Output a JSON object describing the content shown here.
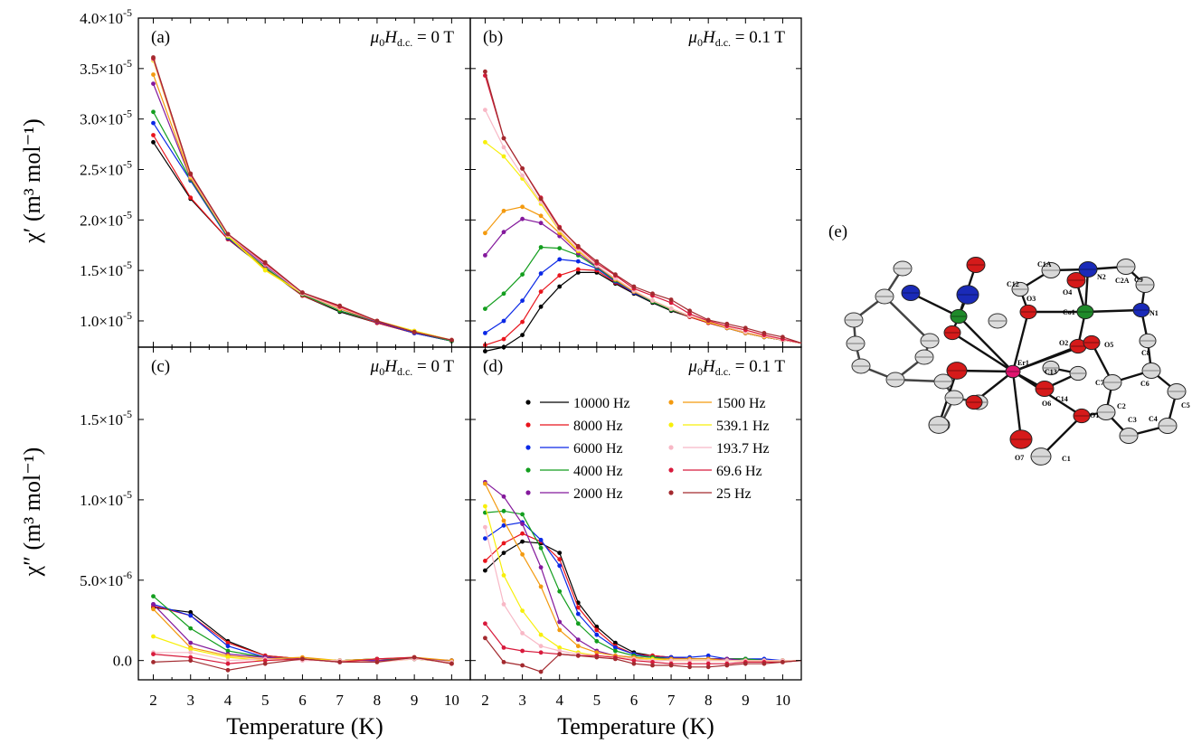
{
  "chart_data": {
    "type": "line",
    "xlabel": "Temperature (K)",
    "ylabel_top": "χ′ (m³ mol⁻¹)",
    "ylabel_bottom": "χ″ (m³ mol⁻¹)",
    "x_ticks": [
      2,
      3,
      4,
      5,
      6,
      7,
      8,
      9,
      10
    ],
    "xlim": [
      1.6,
      10.5
    ],
    "top_ylim": [
      7.4e-06,
      4e-05
    ],
    "bottom_ylim": [
      -1.2e-06,
      1.95e-05
    ],
    "top_y_ticks": [
      {
        "v": 1e-05,
        "m": "1.0×10",
        "e": "-5"
      },
      {
        "v": 1.5e-05,
        "m": "1.5×10",
        "e": "-5"
      },
      {
        "v": 2e-05,
        "m": "2.0×10",
        "e": "-5"
      },
      {
        "v": 2.5e-05,
        "m": "2.5×10",
        "e": "-5"
      },
      {
        "v": 3e-05,
        "m": "3.0×10",
        "e": "-5"
      },
      {
        "v": 3.5e-05,
        "m": "3.5×10",
        "e": "-5"
      },
      {
        "v": 4e-05,
        "m": "4.0×10",
        "e": "-5"
      }
    ],
    "bottom_y_ticks": [
      {
        "v": 0,
        "m": "0.0",
        "e": ""
      },
      {
        "v": 5e-06,
        "m": "5.0×10",
        "e": "-6"
      },
      {
        "v": 1e-05,
        "m": "1.0×10",
        "e": "-5"
      },
      {
        "v": 1.5e-05,
        "m": "1.5×10",
        "e": "-5"
      }
    ],
    "series_labels": [
      "10000 Hz",
      "8000 Hz",
      "6000 Hz",
      "4000 Hz",
      "2000 Hz",
      "1500 Hz",
      "539.1 Hz",
      "193.7 Hz",
      "69.6 Hz",
      "25 Hz"
    ],
    "series_colors": [
      "#000000",
      "#e8141c",
      "#0a28e6",
      "#139e1e",
      "#84199c",
      "#f39a0f",
      "#f7ef0a",
      "#f8b8c6",
      "#d81a3c",
      "#a32a2f"
    ],
    "legend_position": "upper-right of panel (d)",
    "panels": [
      {
        "id": "a",
        "letter": "(a)",
        "field": "0 T",
        "row": "top",
        "col": "left",
        "x": [
          2,
          3,
          4,
          5,
          6,
          7,
          8,
          9,
          10
        ],
        "series": [
          [
            2.77e-05,
            2.21e-05,
            1.81e-05,
            1.52e-05,
            1.25e-05,
            1.09e-05,
            9.8e-06,
            8.8e-06,
            8e-06
          ],
          [
            2.84e-05,
            2.22e-05,
            1.81e-05,
            1.53e-05,
            1.25e-05,
            1.1e-05,
            9.8e-06,
            8.8e-06,
            8e-06
          ],
          [
            2.96e-05,
            2.39e-05,
            1.82e-05,
            1.52e-05,
            1.26e-05,
            1.1e-05,
            9.9e-06,
            8.8e-06,
            8e-06
          ],
          [
            3.07e-05,
            2.4e-05,
            1.83e-05,
            1.53e-05,
            1.26e-05,
            1.1e-05,
            9.9e-06,
            8.9e-06,
            8e-06
          ],
          [
            3.35e-05,
            2.41e-05,
            1.84e-05,
            1.55e-05,
            1.27e-05,
            1.12e-05,
            9.9e-06,
            8.9e-06,
            8.1e-06
          ],
          [
            3.44e-05,
            2.42e-05,
            1.85e-05,
            1.51e-05,
            1.27e-05,
            1.12e-05,
            1e-05,
            9e-06,
            8.1e-06
          ],
          [
            3.58e-05,
            2.43e-05,
            1.84e-05,
            1.5e-05,
            1.27e-05,
            1.13e-05,
            1e-05,
            9e-06,
            8.1e-06
          ],
          [
            3.59e-05,
            2.44e-05,
            1.85e-05,
            1.56e-05,
            1.27e-05,
            1.13e-05,
            1e-05,
            8.9e-06,
            8.1e-06
          ],
          [
            3.6e-05,
            2.45e-05,
            1.86e-05,
            1.57e-05,
            1.28e-05,
            1.14e-05,
            1e-05,
            8.9e-06,
            8.1e-06
          ],
          [
            3.61e-05,
            2.46e-05,
            1.86e-05,
            1.58e-05,
            1.28e-05,
            1.15e-05,
            1e-05,
            8.9e-06,
            8.1e-06
          ]
        ]
      },
      {
        "id": "b",
        "letter": "(b)",
        "field": "0.1 T",
        "row": "top",
        "col": "right",
        "x": [
          2.0,
          2.5,
          3.0,
          3.5,
          4.0,
          4.5,
          5.0,
          5.5,
          6.0,
          6.5,
          7.0,
          7.5,
          8.0,
          8.5,
          9.0,
          9.5,
          10.0,
          10.5
        ],
        "series": [
          [
            7e-06,
            7.4e-06,
            8.6e-06,
            1.14e-05,
            1.34e-05,
            1.48e-05,
            1.48e-05,
            1.37e-05,
            1.27e-05,
            1.18e-05,
            1.1e-05,
            1.04e-05,
            9.8e-06,
            9.3e-06,
            8.8e-06,
            8.4e-06,
            8.1e-06,
            7.8e-06
          ],
          [
            7.6e-06,
            8.2e-06,
            9.9e-06,
            1.29e-05,
            1.45e-05,
            1.51e-05,
            1.5e-05,
            1.38e-05,
            1.28e-05,
            1.19e-05,
            1.11e-05,
            1.04e-05,
            9.8e-06,
            9.3e-06,
            8.8e-06,
            8.4e-06,
            8.1e-06,
            7.8e-06
          ],
          [
            8.8e-06,
            1e-05,
            1.2e-05,
            1.47e-05,
            1.61e-05,
            1.59e-05,
            1.52e-05,
            1.39e-05,
            1.28e-05,
            1.19e-05,
            1.11e-05,
            1.05e-05,
            9.9e-06,
            9.3e-06,
            8.8e-06,
            8.4e-06,
            8.1e-06,
            7.8e-06
          ],
          [
            1.12e-05,
            1.27e-05,
            1.46e-05,
            1.73e-05,
            1.72e-05,
            1.65e-05,
            1.53e-05,
            1.4e-05,
            1.29e-05,
            1.19e-05,
            1.11e-05,
            1.05e-05,
            9.9e-06,
            9.3e-06,
            8.8e-06,
            8.4e-06,
            8.1e-06,
            7.8e-06
          ],
          [
            1.65e-05,
            1.88e-05,
            2.01e-05,
            1.97e-05,
            1.84e-05,
            1.67e-05,
            1.54e-05,
            1.41e-05,
            1.29e-05,
            1.2e-05,
            1.12e-05,
            1.05e-05,
            9.9e-06,
            9.3e-06,
            8.8e-06,
            8.4e-06,
            8.1e-06,
            7.8e-06
          ],
          [
            1.87e-05,
            2.09e-05,
            2.13e-05,
            2.04e-05,
            1.87e-05,
            1.69e-05,
            1.55e-05,
            1.41e-05,
            1.29e-05,
            1.2e-05,
            1.12e-05,
            1.05e-05,
            9.9e-06,
            9.3e-06,
            8.8e-06,
            8.4e-06,
            8.1e-06,
            7.8e-06
          ],
          [
            2.77e-05,
            2.63e-05,
            2.41e-05,
            2.16e-05,
            1.89e-05,
            1.7e-05,
            1.55e-05,
            1.42e-05,
            1.3e-05,
            1.2e-05,
            1.12e-05,
            1.05e-05,
            9.9e-06,
            9.4e-06,
            8.9e-06,
            8.5e-06,
            8.1e-06,
            7.8e-06
          ],
          [
            3.09e-05,
            2.72e-05,
            2.44e-05,
            2.18e-05,
            1.9e-05,
            1.71e-05,
            1.55e-05,
            1.42e-05,
            1.3e-05,
            1.2e-05,
            1.12e-05,
            1.05e-05,
            1e-05,
            9.4e-06,
            8.9e-06,
            8.5e-06,
            8.1e-06,
            7.8e-06
          ],
          [
            3.43e-05,
            2.81e-05,
            2.51e-05,
            2.22e-05,
            1.93e-05,
            1.73e-05,
            1.57e-05,
            1.45e-05,
            1.32e-05,
            1.25e-05,
            1.18e-05,
            1.07e-05,
            1e-05,
            9.5e-06,
            9.1e-06,
            8.6e-06,
            8.2e-06,
            7.8e-06
          ],
          [
            3.47e-05,
            2.81e-05,
            2.51e-05,
            2.21e-05,
            1.92e-05,
            1.74e-05,
            1.59e-05,
            1.46e-05,
            1.34e-05,
            1.27e-05,
            1.21e-05,
            1.1e-05,
            1.01e-05,
            9.7e-06,
            9.3e-06,
            8.8e-06,
            8.4e-06,
            7.8e-06
          ]
        ]
      },
      {
        "id": "c",
        "letter": "(c)",
        "field": "0 T",
        "row": "bottom",
        "col": "left",
        "x": [
          2,
          3,
          4,
          5,
          6,
          7,
          8,
          9,
          10
        ],
        "series": [
          [
            3.3e-06,
            3e-06,
            1.2e-06,
            3e-07,
            1e-07,
            0.0,
            1e-07,
            1e-07,
            0.0
          ],
          [
            3.4e-06,
            2.8e-06,
            1.1e-06,
            3e-07,
            1e-07,
            0.0,
            0.0,
            1e-07,
            -1e-07
          ],
          [
            3.5e-06,
            2.8e-06,
            9e-07,
            2e-07,
            1e-07,
            0.0,
            0.0,
            1e-07,
            0.0
          ],
          [
            4e-06,
            2e-06,
            6e-07,
            2e-07,
            1e-07,
            0.0,
            1e-07,
            1e-07,
            -1e-07
          ],
          [
            3.5e-06,
            1.1e-06,
            4e-07,
            2e-07,
            1e-07,
            -1e-07,
            0.0,
            1e-07,
            0.0
          ],
          [
            3.2e-06,
            8e-07,
            3e-07,
            1e-07,
            2e-07,
            0.0,
            1e-07,
            2e-07,
            0.0
          ],
          [
            1.5e-06,
            7e-07,
            2e-07,
            0.0,
            1e-07,
            0.0,
            -1e-07,
            1e-07,
            -1e-07
          ],
          [
            5e-07,
            5e-07,
            0.0,
            1e-07,
            0.0,
            0.0,
            -1e-07,
            1e-07,
            -1e-07
          ],
          [
            4e-07,
            2e-07,
            -2e-07,
            0.0,
            1e-07,
            -1e-07,
            1e-07,
            2e-07,
            -2e-07
          ],
          [
            -1e-07,
            0.0,
            -6e-07,
            -2e-07,
            1e-07,
            -1e-07,
            -1e-07,
            2e-07,
            -2e-07
          ]
        ]
      },
      {
        "id": "d",
        "letter": "(d)",
        "field": "0.1 T",
        "row": "bottom",
        "col": "right",
        "x": [
          2.0,
          2.5,
          3.0,
          3.5,
          4.0,
          4.5,
          5.0,
          5.5,
          6.0,
          6.5,
          7.0,
          7.5,
          8.0,
          8.5,
          9.0,
          9.5,
          10.0,
          10.5
        ],
        "series": [
          [
            5.6e-06,
            6.7e-06,
            7.4e-06,
            7.3e-06,
            6.7e-06,
            3.6e-06,
            2.1e-06,
            1.1e-06,
            5e-07,
            3e-07,
            2e-07,
            1e-07,
            1e-07,
            1e-07,
            1e-07,
            0.0,
            0.0,
            0.0
          ],
          [
            6.2e-06,
            7.3e-06,
            7.9e-06,
            7.4e-06,
            6.3e-06,
            3.3e-06,
            1.9e-06,
            9e-07,
            4e-07,
            3e-07,
            2e-07,
            1e-07,
            1e-07,
            1e-07,
            1e-07,
            0.0,
            0.0,
            0.0
          ],
          [
            7.6e-06,
            8.4e-06,
            8.6e-06,
            7.5e-06,
            5.9e-06,
            2.9e-06,
            1.6e-06,
            8e-07,
            4e-07,
            2e-07,
            2e-07,
            2e-07,
            3e-07,
            1e-07,
            1e-07,
            1e-07,
            0.0,
            0.0
          ],
          [
            9.2e-06,
            9.3e-06,
            9.1e-06,
            7e-06,
            4.3e-06,
            2.3e-06,
            1.2e-06,
            6e-07,
            3e-07,
            2e-07,
            1e-07,
            1e-07,
            1e-07,
            1e-07,
            1e-07,
            0.0,
            0.0,
            0.0
          ],
          [
            1.11e-05,
            1.02e-05,
            8.5e-06,
            5.8e-06,
            2.4e-06,
            1.3e-06,
            6e-07,
            3e-07,
            2e-07,
            1e-07,
            1e-07,
            1e-07,
            1e-07,
            1e-07,
            0.0,
            0.0,
            0.0,
            0.0
          ],
          [
            1.1e-05,
            8.7e-06,
            6.6e-06,
            4.6e-06,
            1.9e-06,
            9e-07,
            5e-07,
            3e-07,
            2e-07,
            1e-07,
            1e-07,
            1e-07,
            1e-07,
            0.0,
            0.0,
            0.0,
            0.0,
            0.0
          ],
          [
            9.6e-06,
            5.3e-06,
            3.1e-06,
            1.6e-06,
            8e-07,
            5e-07,
            3e-07,
            2e-07,
            1e-07,
            1e-07,
            0.0,
            0.0,
            0.0,
            0.0,
            0.0,
            0.0,
            0.0,
            0.0
          ],
          [
            8.3e-06,
            3.5e-06,
            1.7e-06,
            9e-07,
            6e-07,
            4e-07,
            3e-07,
            2e-07,
            1e-07,
            0.0,
            0.0,
            0.0,
            0.0,
            0.0,
            0.0,
            0.0,
            0.0,
            0.0
          ],
          [
            2.3e-06,
            8e-07,
            6e-07,
            5e-07,
            4e-07,
            3e-07,
            3e-07,
            2e-07,
            0.0,
            -1e-07,
            -2e-07,
            -2e-07,
            -2e-07,
            -2e-07,
            -1e-07,
            -1e-07,
            -1e-07,
            0.0
          ],
          [
            1.4e-06,
            -1e-07,
            -3e-07,
            -7e-07,
            4e-07,
            3e-07,
            2e-07,
            1e-07,
            -2e-07,
            -3e-07,
            -3e-07,
            -4e-07,
            -4e-07,
            -3e-07,
            -2e-07,
            -2e-07,
            -1e-07,
            0.0
          ]
        ]
      }
    ]
  },
  "figure": {
    "field_symbol": "μ",
    "field_subscript_0": "0",
    "field_H": "H",
    "field_subscript_dc": "d.c.",
    "field_equals": " = ",
    "panel_e_letter": "(e)"
  },
  "structure": {
    "atom_labels": [
      "C1A",
      "N2",
      "C2A",
      "C9",
      "C12",
      "O4",
      "O3",
      "Co1",
      "N1",
      "O2",
      "O5",
      "C8",
      "Er1",
      "C13",
      "C7",
      "C6",
      "C5",
      "C14",
      "O6",
      "C2",
      "C3",
      "C4",
      "O1",
      "O7",
      "C1"
    ],
    "colors": {
      "O": "#d51a1a",
      "N": "#1a2ab8",
      "Co": "#1f8a2a",
      "Er": "#e0146e",
      "C": "#d8d8d8"
    }
  }
}
